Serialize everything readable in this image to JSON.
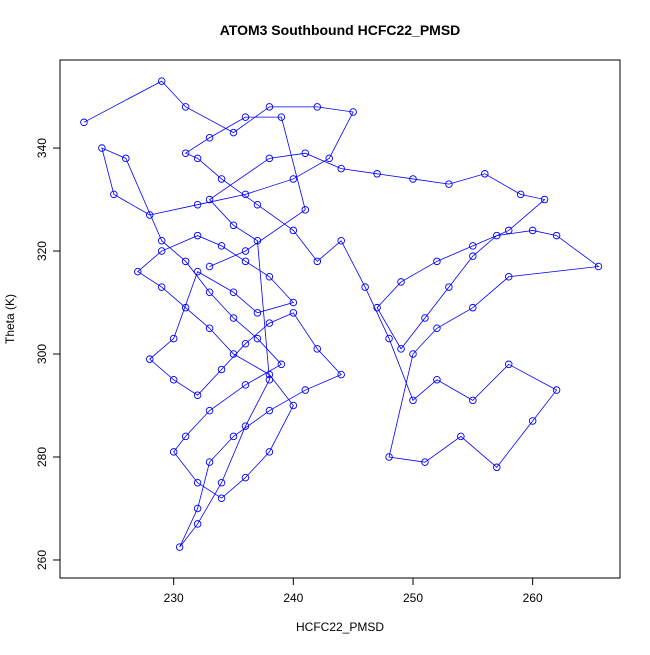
{
  "chart_data": {
    "type": "line",
    "title": "ATOM3 Southbound HCFC22_PMSD",
    "x_label": "HCFC22_PMSD",
    "y_label": "Theta (K)",
    "markers": true,
    "series": [
      {
        "name": "HCFC22_PMSD",
        "color": "#0000ff",
        "x": [
          222.5,
          229,
          231,
          235,
          238,
          242,
          245,
          243,
          240,
          236,
          232,
          228,
          225,
          224,
          226,
          229,
          231,
          233,
          235,
          237,
          239,
          236,
          233,
          231,
          230,
          232,
          234,
          236,
          238,
          240,
          238,
          235,
          233,
          231,
          229,
          227,
          229,
          232,
          234,
          236,
          238,
          240,
          237,
          235,
          232,
          230,
          228,
          230,
          232,
          234,
          236,
          238,
          240,
          242,
          244,
          241,
          238,
          235,
          233,
          232,
          230.5,
          232,
          234,
          236,
          238,
          237,
          235,
          233,
          238,
          241,
          244,
          247,
          250,
          253,
          256,
          259,
          261,
          258,
          255,
          252,
          249,
          247,
          249,
          251,
          253,
          255,
          257,
          260,
          262,
          265.5,
          258,
          255,
          252,
          250,
          248,
          251,
          254,
          257,
          260,
          262,
          258,
          255,
          252,
          250,
          248,
          246,
          244,
          242,
          240,
          237,
          234,
          232,
          231,
          233,
          236,
          239,
          241,
          236,
          233
        ],
        "values": [
          345,
          353,
          348,
          343,
          348,
          348,
          347,
          338,
          334,
          331,
          329,
          327,
          331,
          340,
          338,
          322,
          318,
          312,
          307,
          303,
          298,
          294,
          289,
          284,
          281,
          275,
          272,
          276,
          281,
          290,
          296,
          300,
          305,
          309,
          313,
          316,
          320,
          323,
          321,
          318,
          315,
          310,
          308,
          312,
          316,
          303,
          299,
          295,
          292,
          297,
          302,
          306,
          308,
          301,
          296,
          293,
          289,
          284,
          279,
          270,
          262.5,
          267,
          275,
          286,
          295,
          322,
          325,
          330,
          338,
          339,
          336,
          335,
          334,
          333,
          335,
          331,
          330,
          324,
          321,
          318,
          314,
          309,
          301,
          307,
          313,
          319,
          323,
          324,
          323,
          317,
          315,
          309,
          305,
          300,
          280,
          279,
          284,
          278,
          287,
          293,
          298,
          291,
          295,
          291,
          303,
          313,
          322,
          318,
          324,
          329,
          334,
          338,
          339,
          342,
          346,
          346,
          328,
          320,
          317
        ]
      }
    ],
    "xlim": [
      220.5,
      267.3
    ],
    "ylim": [
      256.5,
      357.1
    ],
    "xticks": [
      230,
      240,
      250,
      260
    ],
    "yticks": [
      260,
      280,
      300,
      320,
      340
    ]
  }
}
